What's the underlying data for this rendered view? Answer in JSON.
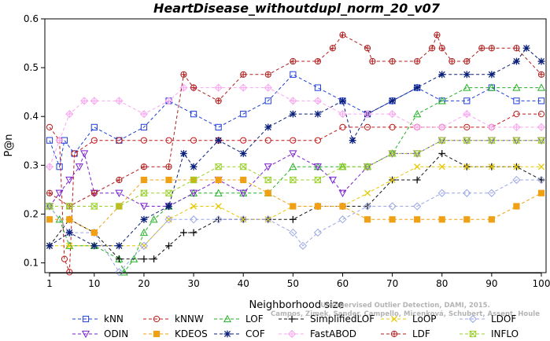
{
  "chart_data": {
    "type": "line",
    "title": "HeartDisease_withoutdupl_norm_20_v07",
    "xlabel": "Neighborhood size",
    "ylabel": "P@n",
    "xlim": [
      1,
      100
    ],
    "ylim": [
      0.08,
      0.6
    ],
    "xticks": [
      1,
      10,
      20,
      30,
      40,
      50,
      60,
      70,
      80,
      90,
      100
    ],
    "yticks": [
      0.1,
      0.2,
      0.3,
      0.4,
      0.5,
      0.6
    ],
    "grid": false,
    "legend_position": "bottom",
    "watermark": [
      "Campos, Zimek, Sander, Campello, Micenková, Schubert, Assent, Houle",
      "Unsupervised Outlier Detection, DAMI, 2015."
    ],
    "series": [
      {
        "name": "kNN",
        "color": "#1f3fd6",
        "marker": "square",
        "points": [
          [
            1,
            0.351
          ],
          [
            3,
            0.297
          ],
          [
            4,
            0.351
          ],
          [
            6,
            0.324
          ],
          [
            10,
            0.378
          ],
          [
            15,
            0.351
          ],
          [
            20,
            0.378
          ],
          [
            25,
            0.432
          ],
          [
            30,
            0.405
          ],
          [
            35,
            0.378
          ],
          [
            40,
            0.405
          ],
          [
            45,
            0.432
          ],
          [
            50,
            0.486
          ],
          [
            55,
            0.459
          ],
          [
            60,
            0.432
          ],
          [
            65,
            0.405
          ],
          [
            70,
            0.432
          ],
          [
            75,
            0.459
          ],
          [
            80,
            0.432
          ],
          [
            85,
            0.432
          ],
          [
            90,
            0.459
          ],
          [
            95,
            0.432
          ],
          [
            100,
            0.432
          ]
        ]
      },
      {
        "name": "kNNW",
        "color": "#c01818",
        "marker": "circle",
        "points": [
          [
            1,
            0.378
          ],
          [
            3,
            0.351
          ],
          [
            4,
            0.108
          ],
          [
            5,
            0.081
          ],
          [
            6,
            0.324
          ],
          [
            10,
            0.351
          ],
          [
            15,
            0.351
          ],
          [
            20,
            0.351
          ],
          [
            25,
            0.351
          ],
          [
            30,
            0.351
          ],
          [
            35,
            0.351
          ],
          [
            40,
            0.351
          ],
          [
            45,
            0.351
          ],
          [
            50,
            0.351
          ],
          [
            55,
            0.351
          ],
          [
            60,
            0.378
          ],
          [
            65,
            0.378
          ],
          [
            70,
            0.378
          ],
          [
            75,
            0.378
          ],
          [
            80,
            0.378
          ],
          [
            85,
            0.378
          ],
          [
            90,
            0.378
          ],
          [
            95,
            0.405
          ],
          [
            100,
            0.405
          ]
        ]
      },
      {
        "name": "LOF",
        "color": "#22b022",
        "marker": "triangle",
        "points": [
          [
            1,
            0.216
          ],
          [
            3,
            0.189
          ],
          [
            5,
            0.135
          ],
          [
            10,
            0.135
          ],
          [
            15,
            0.108
          ],
          [
            16,
            0.081
          ],
          [
            18,
            0.108
          ],
          [
            20,
            0.162
          ],
          [
            22,
            0.189
          ],
          [
            25,
            0.216
          ],
          [
            30,
            0.243
          ],
          [
            35,
            0.243
          ],
          [
            40,
            0.243
          ],
          [
            45,
            0.243
          ],
          [
            50,
            0.297
          ],
          [
            55,
            0.297
          ],
          [
            60,
            0.297
          ],
          [
            65,
            0.297
          ],
          [
            70,
            0.324
          ],
          [
            75,
            0.405
          ],
          [
            80,
            0.432
          ],
          [
            85,
            0.459
          ],
          [
            90,
            0.459
          ],
          [
            95,
            0.459
          ],
          [
            100,
            0.459
          ]
        ]
      },
      {
        "name": "SimplifiedLOF",
        "color": "#111111",
        "marker": "plus",
        "points": [
          [
            1,
            0.135
          ],
          [
            5,
            0.189
          ],
          [
            10,
            0.162
          ],
          [
            15,
            0.108
          ],
          [
            20,
            0.108
          ],
          [
            22,
            0.108
          ],
          [
            25,
            0.135
          ],
          [
            28,
            0.162
          ],
          [
            30,
            0.162
          ],
          [
            35,
            0.189
          ],
          [
            40,
            0.189
          ],
          [
            45,
            0.189
          ],
          [
            50,
            0.189
          ],
          [
            55,
            0.216
          ],
          [
            60,
            0.216
          ],
          [
            65,
            0.216
          ],
          [
            70,
            0.27
          ],
          [
            75,
            0.27
          ],
          [
            80,
            0.324
          ],
          [
            85,
            0.297
          ],
          [
            90,
            0.297
          ],
          [
            95,
            0.297
          ],
          [
            100,
            0.27
          ]
        ]
      },
      {
        "name": "LoOP",
        "color": "#e6c800",
        "marker": "x",
        "points": [
          [
            1,
            0.135
          ],
          [
            5,
            0.135
          ],
          [
            10,
            0.135
          ],
          [
            15,
            0.135
          ],
          [
            20,
            0.135
          ],
          [
            25,
            0.189
          ],
          [
            30,
            0.216
          ],
          [
            35,
            0.216
          ],
          [
            40,
            0.189
          ],
          [
            45,
            0.189
          ],
          [
            50,
            0.216
          ],
          [
            55,
            0.216
          ],
          [
            60,
            0.216
          ],
          [
            65,
            0.243
          ],
          [
            70,
            0.27
          ],
          [
            75,
            0.297
          ],
          [
            80,
            0.297
          ],
          [
            85,
            0.297
          ],
          [
            90,
            0.297
          ],
          [
            95,
            0.297
          ],
          [
            100,
            0.297
          ]
        ]
      },
      {
        "name": "LDOF",
        "color": "#9aa6e6",
        "marker": "diamond",
        "points": [
          [
            1,
            0.216
          ],
          [
            5,
            0.162
          ],
          [
            10,
            0.162
          ],
          [
            15,
            0.081
          ],
          [
            20,
            0.135
          ],
          [
            25,
            0.189
          ],
          [
            30,
            0.189
          ],
          [
            35,
            0.189
          ],
          [
            40,
            0.189
          ],
          [
            45,
            0.189
          ],
          [
            50,
            0.162
          ],
          [
            52,
            0.135
          ],
          [
            55,
            0.162
          ],
          [
            60,
            0.189
          ],
          [
            65,
            0.216
          ],
          [
            70,
            0.216
          ],
          [
            75,
            0.216
          ],
          [
            80,
            0.243
          ],
          [
            85,
            0.243
          ],
          [
            90,
            0.243
          ],
          [
            95,
            0.27
          ],
          [
            100,
            0.27
          ]
        ]
      },
      {
        "name": "ODIN",
        "color": "#7a1fd0",
        "marker": "triangle-down",
        "points": [
          [
            1,
            0.216
          ],
          [
            3,
            0.243
          ],
          [
            5,
            0.27
          ],
          [
            7,
            0.297
          ],
          [
            8,
            0.324
          ],
          [
            10,
            0.243
          ],
          [
            15,
            0.243
          ],
          [
            20,
            0.216
          ],
          [
            25,
            0.216
          ],
          [
            30,
            0.243
          ],
          [
            35,
            0.27
          ],
          [
            40,
            0.243
          ],
          [
            45,
            0.297
          ],
          [
            50,
            0.324
          ],
          [
            55,
            0.297
          ],
          [
            58,
            0.27
          ],
          [
            60,
            0.243
          ],
          [
            65,
            0.297
          ],
          [
            70,
            0.324
          ],
          [
            75,
            0.324
          ],
          [
            80,
            0.351
          ],
          [
            85,
            0.351
          ],
          [
            90,
            0.351
          ],
          [
            95,
            0.351
          ],
          [
            100,
            0.351
          ]
        ]
      },
      {
        "name": "KDEOS",
        "color": "#f0a014",
        "marker": "square-filled",
        "points": [
          [
            1,
            0.189
          ],
          [
            5,
            0.189
          ],
          [
            10,
            0.162
          ],
          [
            15,
            0.216
          ],
          [
            20,
            0.27
          ],
          [
            25,
            0.27
          ],
          [
            30,
            0.27
          ],
          [
            35,
            0.27
          ],
          [
            40,
            0.27
          ],
          [
            45,
            0.243
          ],
          [
            50,
            0.216
          ],
          [
            55,
            0.216
          ],
          [
            60,
            0.216
          ],
          [
            65,
            0.189
          ],
          [
            70,
            0.189
          ],
          [
            75,
            0.189
          ],
          [
            80,
            0.189
          ],
          [
            85,
            0.189
          ],
          [
            90,
            0.189
          ],
          [
            95,
            0.216
          ],
          [
            100,
            0.243
          ]
        ]
      },
      {
        "name": "COF",
        "color": "#0a1f7a",
        "marker": "asterisk",
        "points": [
          [
            1,
            0.135
          ],
          [
            5,
            0.162
          ],
          [
            10,
            0.135
          ],
          [
            15,
            0.135
          ],
          [
            20,
            0.189
          ],
          [
            25,
            0.216
          ],
          [
            28,
            0.324
          ],
          [
            30,
            0.297
          ],
          [
            35,
            0.351
          ],
          [
            40,
            0.324
          ],
          [
            45,
            0.378
          ],
          [
            50,
            0.405
          ],
          [
            55,
            0.405
          ],
          [
            60,
            0.432
          ],
          [
            62,
            0.351
          ],
          [
            65,
            0.405
          ],
          [
            70,
            0.432
          ],
          [
            75,
            0.459
          ],
          [
            80,
            0.486
          ],
          [
            85,
            0.486
          ],
          [
            90,
            0.486
          ],
          [
            95,
            0.513
          ],
          [
            97,
            0.54
          ],
          [
            100,
            0.513
          ]
        ]
      },
      {
        "name": "FastABOD",
        "color": "#f7a8f0",
        "marker": "diamond-plus",
        "points": [
          [
            1,
            0.297
          ],
          [
            3,
            0.351
          ],
          [
            5,
            0.405
          ],
          [
            8,
            0.432
          ],
          [
            10,
            0.432
          ],
          [
            15,
            0.432
          ],
          [
            20,
            0.405
          ],
          [
            25,
            0.432
          ],
          [
            28,
            0.459
          ],
          [
            30,
            0.459
          ],
          [
            35,
            0.459
          ],
          [
            40,
            0.459
          ],
          [
            45,
            0.459
          ],
          [
            50,
            0.432
          ],
          [
            55,
            0.432
          ],
          [
            60,
            0.405
          ],
          [
            65,
            0.405
          ],
          [
            70,
            0.405
          ],
          [
            75,
            0.378
          ],
          [
            80,
            0.378
          ],
          [
            85,
            0.405
          ],
          [
            90,
            0.378
          ],
          [
            95,
            0.378
          ],
          [
            100,
            0.378
          ]
        ]
      },
      {
        "name": "LDF",
        "color": "#b02020",
        "marker": "circle-plus",
        "points": [
          [
            1,
            0.243
          ],
          [
            5,
            0.216
          ],
          [
            10,
            0.243
          ],
          [
            15,
            0.27
          ],
          [
            20,
            0.297
          ],
          [
            25,
            0.297
          ],
          [
            28,
            0.486
          ],
          [
            30,
            0.459
          ],
          [
            35,
            0.432
          ],
          [
            40,
            0.486
          ],
          [
            45,
            0.486
          ],
          [
            50,
            0.513
          ],
          [
            55,
            0.513
          ],
          [
            58,
            0.54
          ],
          [
            60,
            0.567
          ],
          [
            65,
            0.54
          ],
          [
            66,
            0.513
          ],
          [
            70,
            0.513
          ],
          [
            75,
            0.513
          ],
          [
            78,
            0.54
          ],
          [
            79,
            0.567
          ],
          [
            80,
            0.54
          ],
          [
            82,
            0.513
          ],
          [
            85,
            0.513
          ],
          [
            88,
            0.54
          ],
          [
            90,
            0.54
          ],
          [
            95,
            0.54
          ],
          [
            100,
            0.486
          ]
        ]
      },
      {
        "name": "INFLO",
        "color": "#9ad02a",
        "marker": "hourglass",
        "points": [
          [
            1,
            0.216
          ],
          [
            5,
            0.216
          ],
          [
            10,
            0.216
          ],
          [
            15,
            0.216
          ],
          [
            20,
            0.243
          ],
          [
            25,
            0.243
          ],
          [
            30,
            0.27
          ],
          [
            35,
            0.297
          ],
          [
            40,
            0.297
          ],
          [
            45,
            0.27
          ],
          [
            50,
            0.27
          ],
          [
            55,
            0.27
          ],
          [
            60,
            0.297
          ],
          [
            65,
            0.297
          ],
          [
            70,
            0.324
          ],
          [
            75,
            0.324
          ],
          [
            80,
            0.351
          ],
          [
            85,
            0.351
          ],
          [
            90,
            0.351
          ],
          [
            95,
            0.351
          ],
          [
            100,
            0.351
          ]
        ]
      }
    ]
  }
}
